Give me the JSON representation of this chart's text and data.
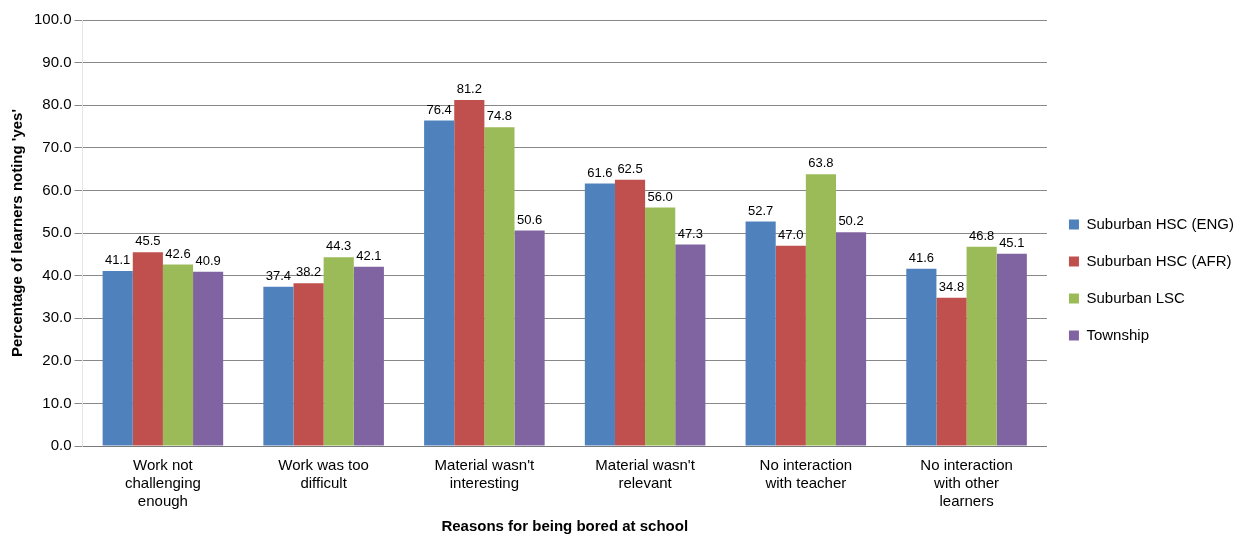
{
  "chart_data": {
    "type": "bar",
    "xlabel": "Reasons for being bored at school",
    "ylabel": "Percentage of learners noting 'yes'",
    "categories": [
      "Work not challenging enough",
      "Work was too difficult",
      "Material wasn't interesting",
      "Material wasn't relevant",
      "No interaction with teacher",
      "No interaction with other learners"
    ],
    "series": [
      {
        "name": "Suburban HSC (ENG)",
        "color": "#4f81bd",
        "values": [
          41.1,
          37.4,
          76.4,
          61.6,
          52.7,
          41.6
        ],
        "value_labels": [
          "41.1",
          "37.4",
          "76.4",
          "61.6",
          "52.7",
          "41.6"
        ]
      },
      {
        "name": "Suburban HSC (AFR)",
        "color": "#c0504d",
        "values": [
          45.5,
          38.2,
          81.2,
          62.5,
          47.0,
          34.8
        ],
        "value_labels": [
          "45.5",
          "38.2",
          "81.2",
          "62.5",
          "47.0",
          "34.8"
        ]
      },
      {
        "name": "Suburban LSC",
        "color": "#9bbb59",
        "values": [
          42.6,
          44.3,
          74.8,
          56.0,
          63.8,
          46.8
        ],
        "value_labels": [
          "42.6",
          "44.3",
          "74.8",
          "56.0",
          "63.8",
          "46.8"
        ]
      },
      {
        "name": "Township",
        "color": "#8064a2",
        "values": [
          40.9,
          42.1,
          50.6,
          47.3,
          50.2,
          45.1
        ],
        "value_labels": [
          "40.9",
          "42.1",
          "50.6",
          "47.3",
          "50.2",
          "45.1"
        ]
      }
    ],
    "ylim": [
      0,
      100
    ],
    "yticks": [
      {
        "value": 0,
        "label": "0.0"
      },
      {
        "value": 10,
        "label": "10.0"
      },
      {
        "value": 20,
        "label": "20.0"
      },
      {
        "value": 30,
        "label": "30.0"
      },
      {
        "value": 40,
        "label": "40.0"
      },
      {
        "value": 50,
        "label": "50.0"
      },
      {
        "value": 60,
        "label": "60.0"
      },
      {
        "value": 70,
        "label": "70.0"
      },
      {
        "value": 80,
        "label": "80.0"
      },
      {
        "value": 90,
        "label": "90.0"
      },
      {
        "value": 100,
        "label": "100.0"
      }
    ],
    "grid": "y",
    "legend": "right"
  }
}
